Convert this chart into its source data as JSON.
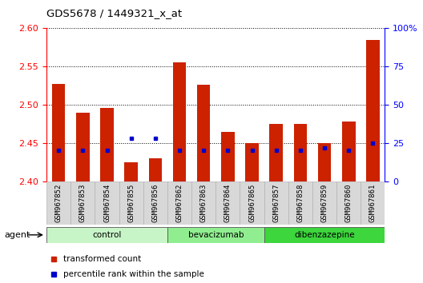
{
  "title": "GDS5678 / 1449321_x_at",
  "samples": [
    "GSM967852",
    "GSM967853",
    "GSM967854",
    "GSM967855",
    "GSM967856",
    "GSM967862",
    "GSM967863",
    "GSM967864",
    "GSM967865",
    "GSM967857",
    "GSM967858",
    "GSM967859",
    "GSM967860",
    "GSM967861"
  ],
  "transformed_counts": [
    2.527,
    2.49,
    2.496,
    2.425,
    2.43,
    2.555,
    2.526,
    2.464,
    2.45,
    2.475,
    2.475,
    2.45,
    2.478,
    2.585
  ],
  "percentile_ranks": [
    20,
    20,
    20,
    28,
    28,
    20,
    20,
    20,
    20,
    20,
    20,
    22,
    20,
    25
  ],
  "groups": [
    {
      "label": "control",
      "start": 0,
      "end": 5,
      "color": "#c8f5c8"
    },
    {
      "label": "bevacizumab",
      "start": 5,
      "end": 9,
      "color": "#90ee90"
    },
    {
      "label": "dibenzazepine",
      "start": 9,
      "end": 14,
      "color": "#3dd63d"
    }
  ],
  "ylim_left": [
    2.4,
    2.6
  ],
  "ylim_right": [
    0,
    100
  ],
  "yticks_left": [
    2.4,
    2.45,
    2.5,
    2.55,
    2.6
  ],
  "yticks_right": [
    0,
    25,
    50,
    75,
    100
  ],
  "bar_color": "#cc2200",
  "percentile_color": "#0000cc",
  "bar_bottom": 2.4,
  "bar_width": 0.55,
  "legend_red": "transformed count",
  "legend_blue": "percentile rank within the sample",
  "agent_label": "agent",
  "tick_bg": "#d0d0d0",
  "right_ytick_labels": [
    "0",
    "25",
    "50",
    "75",
    "100%"
  ]
}
